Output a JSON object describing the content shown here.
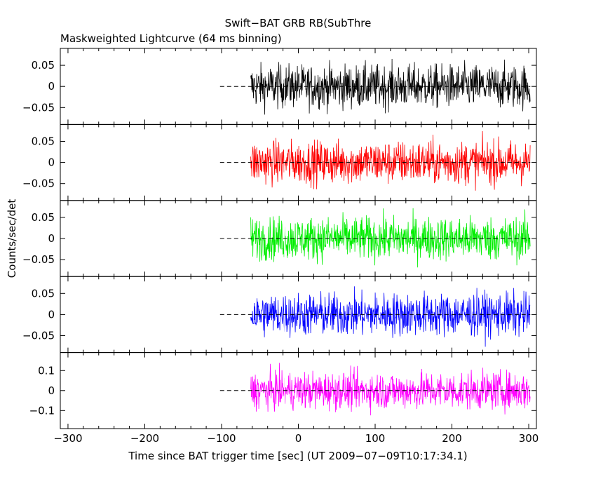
{
  "title": "Swift−BAT GRB RB(SubThre",
  "subtitle": "Maskweighted Lightcurve (64 ms binning)",
  "chart_data": {
    "type": "line",
    "title": "Swift−BAT GRB RB(SubThre",
    "subtitle": "Maskweighted Lightcurve (64 ms binning)",
    "xlabel": "Time since BAT trigger time [sec] (UT 2009−07−09T10:17:34.1)",
    "ylabel": "Counts/sec/det",
    "xlim": [
      -310,
      310
    ],
    "x_ticks": [
      -300,
      -200,
      -100,
      0,
      100,
      200,
      300
    ],
    "x_tick_labels": [
      "−300",
      "−200",
      "−100",
      "0",
      "100",
      "200",
      "300"
    ],
    "data_start": -62,
    "data_end": 302,
    "dashed_zero_start": -102,
    "panels": [
      {
        "color": "#000000",
        "ylim": [
          -0.09,
          0.09
        ],
        "y_ticks": [
          0.05,
          0,
          -0.05
        ],
        "y_tick_labels": [
          "0.05",
          "0",
          "−0.05"
        ],
        "noise_amplitude": 0.06
      },
      {
        "color": "#ff0000",
        "ylim": [
          -0.09,
          0.09
        ],
        "y_ticks": [
          0.05,
          0,
          -0.05
        ],
        "y_tick_labels": [
          "0.05",
          "0",
          "−0.05"
        ],
        "noise_amplitude": 0.06
      },
      {
        "color": "#00ee00",
        "ylim": [
          -0.09,
          0.09
        ],
        "y_ticks": [
          0.05,
          0,
          -0.05
        ],
        "y_tick_labels": [
          "0.05",
          "0",
          "−0.05"
        ],
        "noise_amplitude": 0.06
      },
      {
        "color": "#0000ff",
        "ylim": [
          -0.09,
          0.09
        ],
        "y_ticks": [
          0.05,
          0,
          -0.05
        ],
        "y_tick_labels": [
          "0.05",
          "0",
          "−0.05"
        ],
        "noise_amplitude": 0.06
      },
      {
        "color": "#ff00ff",
        "ylim": [
          -0.19,
          0.19
        ],
        "y_ticks": [
          0.1,
          0,
          -0.1
        ],
        "y_tick_labels": [
          "0.1",
          "0",
          "−0.1"
        ],
        "noise_amplitude": 0.11
      }
    ]
  }
}
